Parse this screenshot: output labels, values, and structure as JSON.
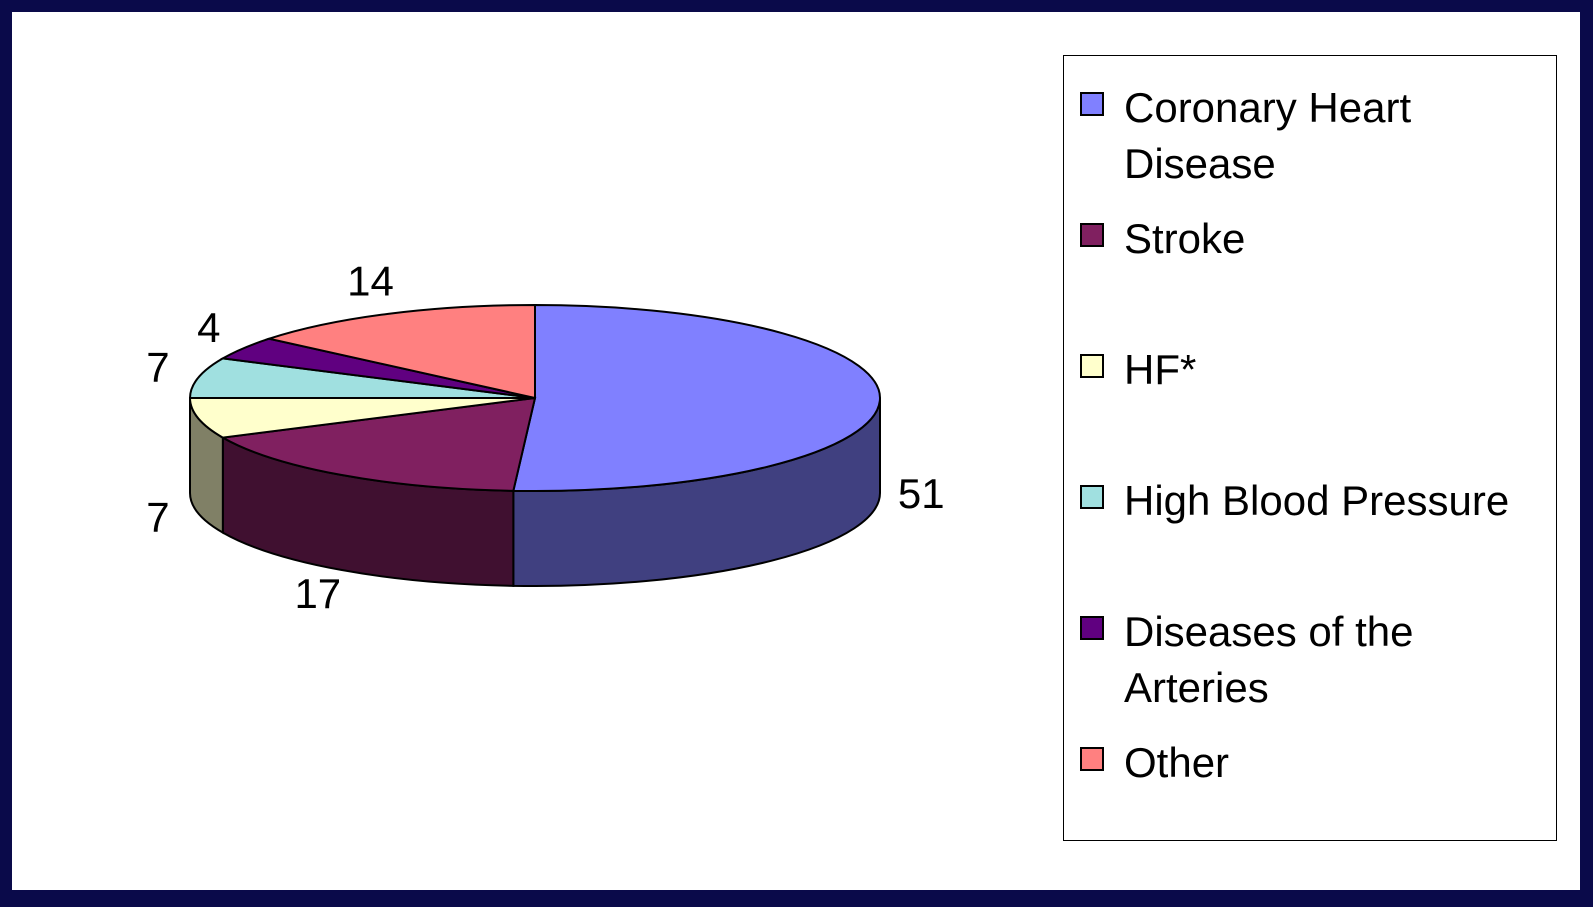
{
  "chart_data": {
    "type": "pie",
    "style": "3d",
    "categories": [
      "Coronary Heart Disease",
      "Stroke",
      "HF*",
      "High Blood Pressure",
      "Diseases of the Arteries",
      "Other"
    ],
    "values": [
      51,
      17,
      7,
      7,
      4,
      14
    ],
    "colors": [
      "#8080ff",
      "#802060",
      "#ffffcc",
      "#a0e0e0",
      "#600080",
      "#ff8080"
    ],
    "legend": "right"
  }
}
